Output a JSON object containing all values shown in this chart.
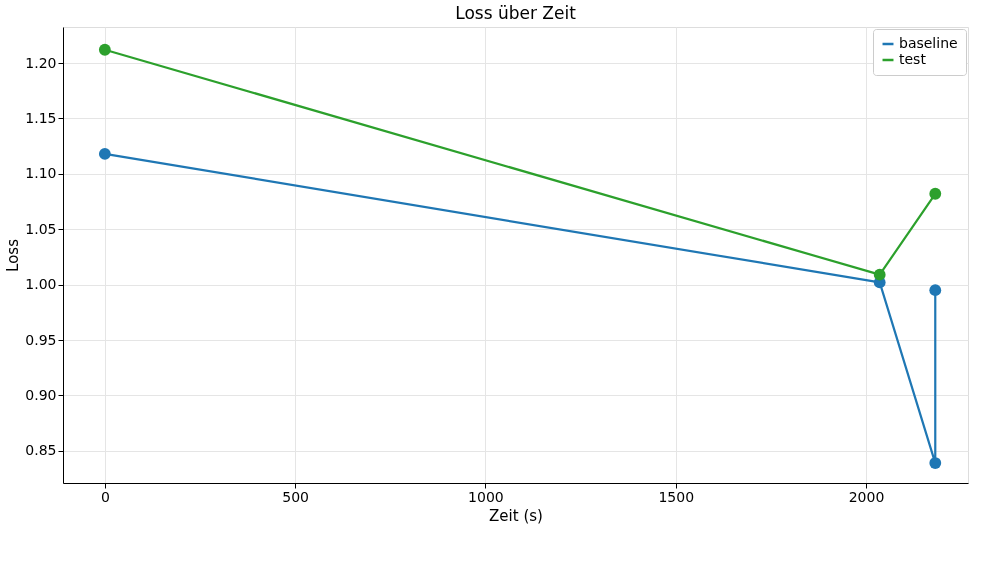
{
  "chart_data": {
    "type": "line",
    "title": "Loss über Zeit",
    "xlabel": "Zeit (s)",
    "ylabel": "Loss",
    "xlim": [
      -110,
      2268
    ],
    "xticks": [
      0,
      500,
      1000,
      1500,
      2000
    ],
    "ylim": [
      0.821,
      1.2325
    ],
    "yticks": [
      {
        "value": 0.85,
        "label": "0.85"
      },
      {
        "value": 0.9,
        "label": "0.90"
      },
      {
        "value": 0.95,
        "label": "0.95"
      },
      {
        "value": 1.0,
        "label": "1.00"
      },
      {
        "value": 1.05,
        "label": "1.05"
      },
      {
        "value": 1.1,
        "label": "1.10"
      },
      {
        "value": 1.15,
        "label": "1.15"
      },
      {
        "value": 1.2,
        "label": "1.20"
      }
    ],
    "grid": true,
    "legend": "top right",
    "marker": "circle",
    "line_style": "solid",
    "series": [
      {
        "name": "baseline",
        "color": "#1f77b4",
        "x": [
          0,
          2036,
          2182,
          2182
        ],
        "values": [
          1.118,
          1.002,
          0.839,
          0.995
        ]
      },
      {
        "name": "test",
        "color": "#2ca02c",
        "x": [
          0,
          2036,
          2182
        ],
        "values": [
          1.212,
          1.009,
          1.082
        ]
      }
    ]
  }
}
